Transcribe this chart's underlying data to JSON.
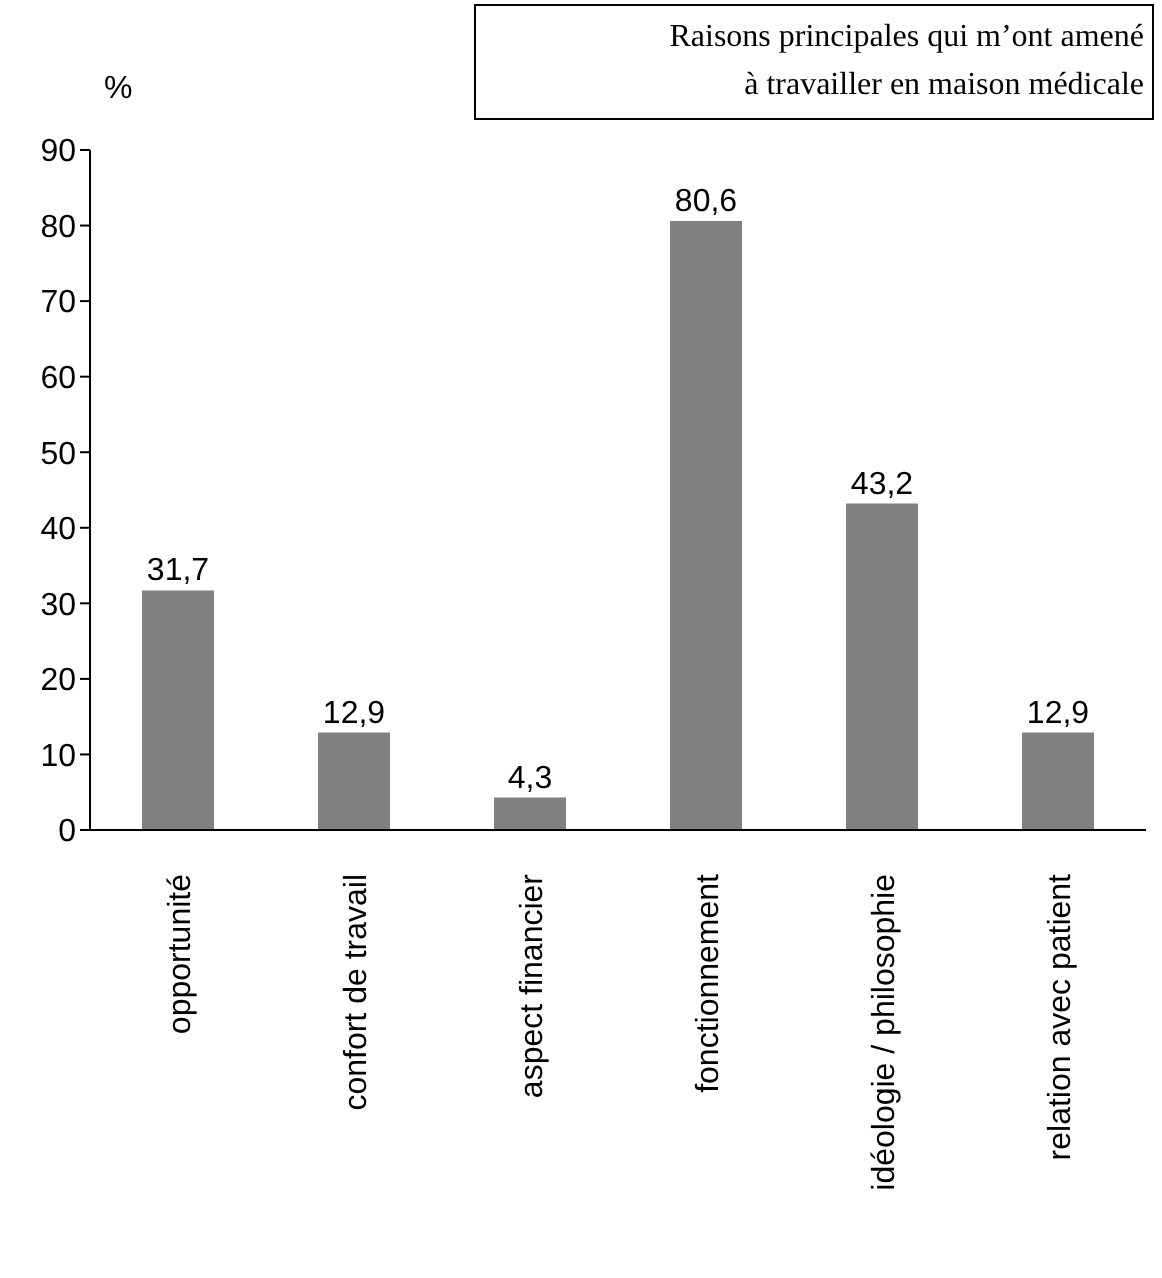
{
  "chart_data": {
    "type": "bar",
    "title": "Raisons principales qui m’ont amené\nà travailler en maison médicale",
    "ylabel": "%",
    "categories": [
      "opportunité",
      "confort de travail",
      "aspect financier",
      "fonctionnement",
      "idéologie / philosophie",
      "relation avec patient"
    ],
    "values": [
      31.7,
      12.9,
      4.3,
      80.6,
      43.2,
      12.9
    ],
    "value_labels": [
      "31,7",
      "12,9",
      "4,3",
      "80,6",
      "43,2",
      "12,9"
    ],
    "color": "#808080",
    "ylim": [
      0,
      90
    ],
    "yticks": [
      0,
      10,
      20,
      30,
      40,
      50,
      60,
      70,
      80,
      90
    ],
    "grid": false,
    "legend": false
  }
}
